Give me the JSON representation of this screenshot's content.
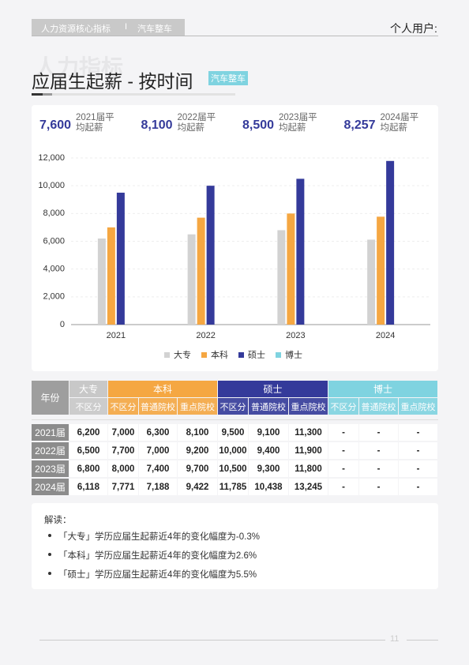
{
  "header": {
    "tag_main": "人力资源核心指标",
    "separator": "I",
    "tag_sub": "汽车整车",
    "user": "个人用户:"
  },
  "watermark": "人力指标",
  "title": "应届生起薪 - 按时间",
  "title_tag": "汽车整车",
  "kpis": [
    {
      "value": "7,600",
      "label": "2021届平均起薪"
    },
    {
      "value": "8,100",
      "label": "2022届平均起薪"
    },
    {
      "value": "8,500",
      "label": "2023届平均起薪"
    },
    {
      "value": "8,257",
      "label": "2024届平均起薪"
    }
  ],
  "chart_data": {
    "type": "bar",
    "categories": [
      "2021",
      "2022",
      "2023",
      "2024"
    ],
    "series": [
      {
        "name": "大专",
        "color": "#d2d2d2",
        "values": [
          6200,
          6500,
          6800,
          6118
        ]
      },
      {
        "name": "本科",
        "color": "#f5a742",
        "values": [
          7000,
          7700,
          8000,
          7771
        ]
      },
      {
        "name": "硕士",
        "color": "#343a9a",
        "values": [
          9500,
          10000,
          10500,
          11785
        ]
      },
      {
        "name": "博士",
        "color": "#7fd3e0",
        "values": [
          null,
          null,
          null,
          null
        ]
      }
    ],
    "ylim": [
      0,
      12000
    ],
    "yticks": [
      0,
      {
        "value": 2000,
        "label": "2,000"
      },
      {
        "value": 4000,
        "label": "4,000"
      },
      {
        "value": 6000,
        "label": "6,000"
      },
      {
        "value": 8000,
        "label": "8,000"
      },
      {
        "value": 10000,
        "label": "10,000"
      },
      {
        "value": 12000,
        "label": "12,000"
      }
    ],
    "grid": true,
    "legend": "bottom"
  },
  "table": {
    "year_header": "年份",
    "groups": [
      {
        "name": "大专",
        "color": "#c8c8c8",
        "columns": [
          "不区分"
        ]
      },
      {
        "name": "本科",
        "color": "#f5a742",
        "columns": [
          "不区分",
          "普通院校",
          "重点院校"
        ]
      },
      {
        "name": "硕士",
        "color": "#343a9a",
        "columns": [
          "不区分",
          "普通院校",
          "重点院校"
        ]
      },
      {
        "name": "博士",
        "color": "#7fd3e0",
        "columns": [
          "不区分",
          "普通院校",
          "重点院校"
        ]
      }
    ],
    "rows": [
      {
        "year": "2021届",
        "cells": [
          "6,200",
          "7,000",
          "6,300",
          "8,100",
          "9,500",
          "9,100",
          "11,300",
          "-",
          "-",
          "-"
        ]
      },
      {
        "year": "2022届",
        "cells": [
          "6,500",
          "7,700",
          "7,000",
          "9,200",
          "10,000",
          "9,400",
          "11,900",
          "-",
          "-",
          "-"
        ]
      },
      {
        "year": "2023届",
        "cells": [
          "6,800",
          "8,000",
          "7,400",
          "9,700",
          "10,500",
          "9,300",
          "11,800",
          "-",
          "-",
          "-"
        ]
      },
      {
        "year": "2024届",
        "cells": [
          "6,118",
          "7,771",
          "7,188",
          "9,422",
          "11,785",
          "10,438",
          "13,245",
          "-",
          "-",
          "-"
        ]
      }
    ]
  },
  "notes": {
    "heading": "解读：",
    "items": [
      "「大专」学历应届生起薪近4年的变化幅度为-0.3%",
      "「本科」学历应届生起薪近4年的变化幅度为2.6%",
      "「硕士」学历应届生起薪近4年的变化幅度为5.5%"
    ]
  },
  "page_number": "11"
}
